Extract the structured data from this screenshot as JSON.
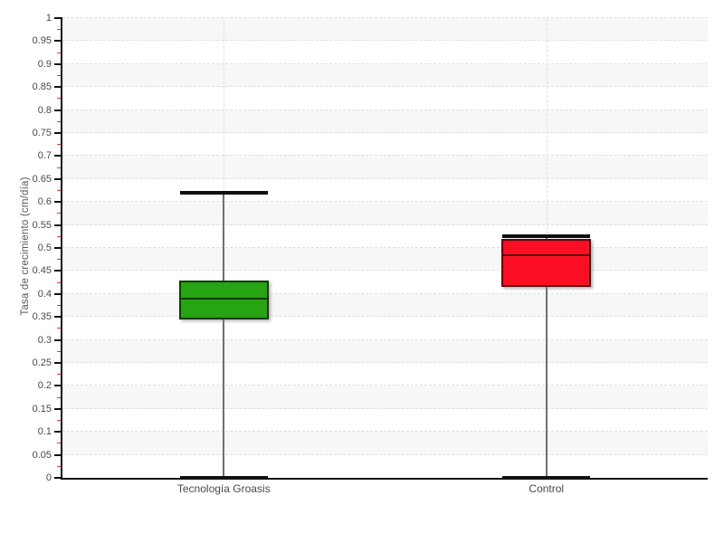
{
  "chart_data": {
    "type": "boxplot",
    "title": "",
    "xlabel": "",
    "ylabel": "Tasa de crecimiento (cm/día)",
    "ylim": [
      0,
      1
    ],
    "ytick_step": 0.05,
    "yminor_tick_step": 0.025,
    "grid": "dashed horizontal every 0.05, dashed vertical at category centers, alternating shaded bands",
    "legend": "none",
    "categories": [
      "Tecnología Groasis",
      "Control"
    ],
    "series": [
      {
        "name": "Tecnología Groasis",
        "min": 0,
        "q1": 0.345,
        "median": 0.39,
        "q3": 0.43,
        "max": 0.62,
        "fill_color": "#26A412",
        "stroke_color": "#143A08"
      },
      {
        "name": "Control",
        "min": 0,
        "q1": 0.415,
        "median": 0.485,
        "q3": 0.52,
        "max": 0.525,
        "fill_color": "#FB0E23",
        "stroke_color": "#57090F"
      }
    ],
    "colors": {
      "band": "#F7F7F7",
      "gridline": "#DFDFDF",
      "axis": "#111111",
      "tick_label": "#45494D",
      "minor_tick": "#E2392A",
      "whisker": "#6F6F6F",
      "cap": "#111111"
    }
  }
}
